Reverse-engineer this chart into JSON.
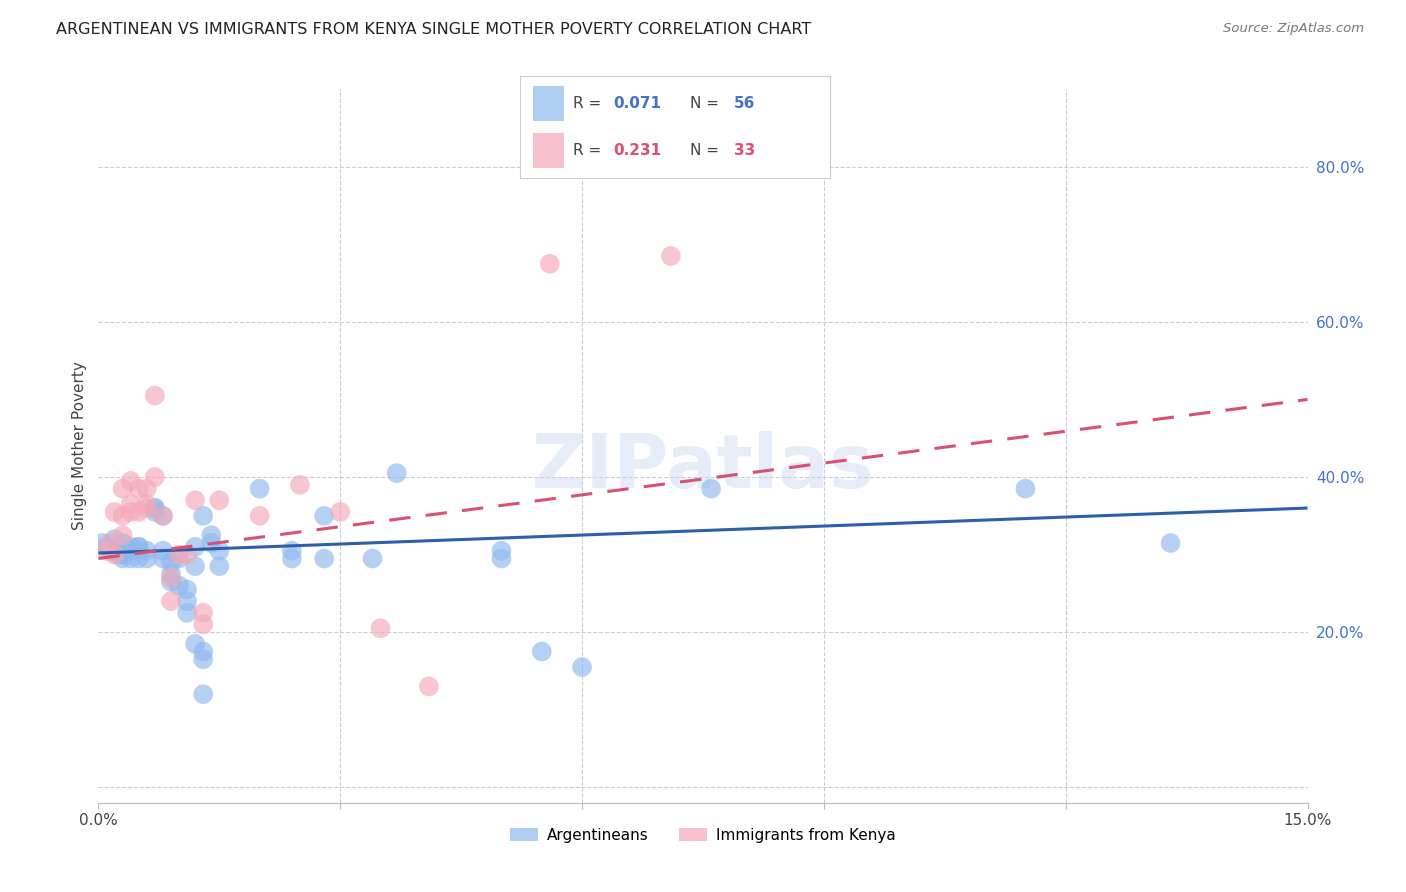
{
  "title": "ARGENTINEAN VS IMMIGRANTS FROM KENYA SINGLE MOTHER POVERTY CORRELATION CHART",
  "source": "Source: ZipAtlas.com",
  "ylabel": "Single Mother Poverty",
  "xlim": [
    0.0,
    0.15
  ],
  "ylim": [
    -0.02,
    0.9
  ],
  "right_yticks": [
    0.2,
    0.4,
    0.6,
    0.8
  ],
  "right_yticklabels": [
    "20.0%",
    "40.0%",
    "60.0%",
    "80.0%"
  ],
  "xtick_positions": [
    0.0,
    0.03,
    0.06,
    0.09,
    0.12,
    0.15
  ],
  "xtick_labels": [
    "0.0%",
    "",
    "",
    "",
    "",
    "15.0%"
  ],
  "r1": "0.071",
  "n1": "56",
  "r2": "0.231",
  "n2": "33",
  "blue_color": "#8FB8ED",
  "pink_color": "#F4A8B8",
  "line_blue": "#2C5FAC",
  "line_pink": "#D95070",
  "blue_label": "Argentineans",
  "pink_label": "Immigrants from Kenya",
  "watermark": "ZIPatlas",
  "argentineans": [
    [
      0.0005,
      0.315
    ],
    [
      0.001,
      0.31
    ],
    [
      0.0015,
      0.305
    ],
    [
      0.002,
      0.305
    ],
    [
      0.002,
      0.32
    ],
    [
      0.0025,
      0.3
    ],
    [
      0.003,
      0.315
    ],
    [
      0.003,
      0.3
    ],
    [
      0.003,
      0.295
    ],
    [
      0.004,
      0.31
    ],
    [
      0.004,
      0.295
    ],
    [
      0.004,
      0.305
    ],
    [
      0.005,
      0.31
    ],
    [
      0.005,
      0.295
    ],
    [
      0.005,
      0.31
    ],
    [
      0.006,
      0.305
    ],
    [
      0.006,
      0.295
    ],
    [
      0.007,
      0.355
    ],
    [
      0.007,
      0.36
    ],
    [
      0.007,
      0.36
    ],
    [
      0.008,
      0.35
    ],
    [
      0.008,
      0.305
    ],
    [
      0.008,
      0.295
    ],
    [
      0.009,
      0.29
    ],
    [
      0.009,
      0.275
    ],
    [
      0.009,
      0.265
    ],
    [
      0.01,
      0.295
    ],
    [
      0.01,
      0.26
    ],
    [
      0.011,
      0.255
    ],
    [
      0.011,
      0.24
    ],
    [
      0.011,
      0.225
    ],
    [
      0.012,
      0.31
    ],
    [
      0.012,
      0.285
    ],
    [
      0.012,
      0.185
    ],
    [
      0.013,
      0.35
    ],
    [
      0.013,
      0.175
    ],
    [
      0.013,
      0.165
    ],
    [
      0.013,
      0.12
    ],
    [
      0.014,
      0.325
    ],
    [
      0.014,
      0.315
    ],
    [
      0.015,
      0.305
    ],
    [
      0.015,
      0.285
    ],
    [
      0.02,
      0.385
    ],
    [
      0.024,
      0.295
    ],
    [
      0.024,
      0.305
    ],
    [
      0.028,
      0.35
    ],
    [
      0.028,
      0.295
    ],
    [
      0.034,
      0.295
    ],
    [
      0.037,
      0.405
    ],
    [
      0.05,
      0.305
    ],
    [
      0.05,
      0.295
    ],
    [
      0.055,
      0.175
    ],
    [
      0.06,
      0.155
    ],
    [
      0.076,
      0.385
    ],
    [
      0.115,
      0.385
    ],
    [
      0.133,
      0.315
    ]
  ],
  "kenyans": [
    [
      0.001,
      0.305
    ],
    [
      0.0015,
      0.315
    ],
    [
      0.002,
      0.3
    ],
    [
      0.002,
      0.355
    ],
    [
      0.003,
      0.385
    ],
    [
      0.003,
      0.35
    ],
    [
      0.003,
      0.325
    ],
    [
      0.004,
      0.355
    ],
    [
      0.004,
      0.365
    ],
    [
      0.004,
      0.395
    ],
    [
      0.005,
      0.355
    ],
    [
      0.005,
      0.385
    ],
    [
      0.006,
      0.36
    ],
    [
      0.006,
      0.385
    ],
    [
      0.006,
      0.365
    ],
    [
      0.007,
      0.4
    ],
    [
      0.007,
      0.505
    ],
    [
      0.008,
      0.35
    ],
    [
      0.009,
      0.27
    ],
    [
      0.009,
      0.24
    ],
    [
      0.01,
      0.3
    ],
    [
      0.011,
      0.3
    ],
    [
      0.012,
      0.37
    ],
    [
      0.013,
      0.225
    ],
    [
      0.013,
      0.21
    ],
    [
      0.015,
      0.37
    ],
    [
      0.02,
      0.35
    ],
    [
      0.025,
      0.39
    ],
    [
      0.03,
      0.355
    ],
    [
      0.035,
      0.205
    ],
    [
      0.041,
      0.13
    ],
    [
      0.056,
      0.675
    ],
    [
      0.071,
      0.685
    ]
  ],
  "blue_line_x": [
    0.0,
    0.15
  ],
  "blue_line_y": [
    0.302,
    0.36
  ],
  "pink_line_x": [
    0.0,
    0.15
  ],
  "pink_line_y": [
    0.295,
    0.5
  ]
}
